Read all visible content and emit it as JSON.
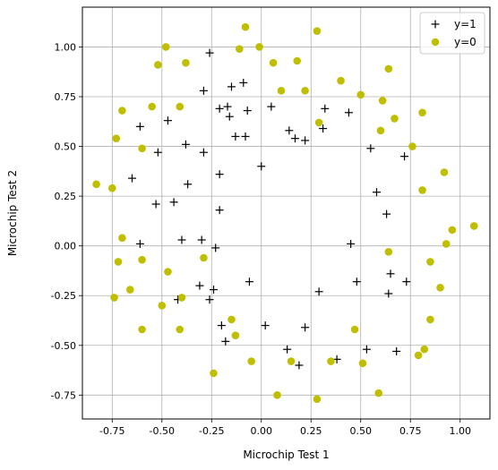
{
  "chart_data": {
    "type": "scatter",
    "xlabel": "Microchip Test 1",
    "ylabel": "Microchip Test 2",
    "xlim": [
      -0.9,
      1.15
    ],
    "ylim": [
      -0.87,
      1.2
    ],
    "xticks": [
      "-0.75",
      "-0.50",
      "-0.25",
      "0.00",
      "0.25",
      "0.50",
      "0.75",
      "1.00"
    ],
    "yticks": [
      "-0.75",
      "-0.50",
      "-0.25",
      "0.00",
      "0.25",
      "0.50",
      "0.75",
      "1.00"
    ],
    "grid": true,
    "legend_position": "top-right",
    "colors": {
      "y1": "#000000",
      "y0": "#bfbf00",
      "grid": "#b0b0b0"
    },
    "series": [
      {
        "name": "y=1",
        "marker": "plus",
        "points": [
          [
            -0.26,
            0.97
          ],
          [
            -0.29,
            0.78
          ],
          [
            -0.15,
            0.8
          ],
          [
            -0.09,
            0.82
          ],
          [
            -0.21,
            0.69
          ],
          [
            -0.17,
            0.7
          ],
          [
            -0.07,
            0.68
          ],
          [
            -0.16,
            0.65
          ],
          [
            -0.13,
            0.55
          ],
          [
            -0.08,
            0.55
          ],
          [
            0.05,
            0.7
          ],
          [
            0.14,
            0.58
          ],
          [
            0.17,
            0.54
          ],
          [
            0.22,
            0.53
          ],
          [
            0.31,
            0.59
          ],
          [
            0.32,
            0.69
          ],
          [
            0.44,
            0.67
          ],
          [
            -0.47,
            0.63
          ],
          [
            -0.61,
            0.6
          ],
          [
            -0.52,
            0.47
          ],
          [
            -0.38,
            0.51
          ],
          [
            -0.29,
            0.47
          ],
          [
            -0.65,
            0.34
          ],
          [
            -0.37,
            0.31
          ],
          [
            -0.21,
            0.36
          ],
          [
            0.0,
            0.4
          ],
          [
            0.55,
            0.49
          ],
          [
            0.72,
            0.45
          ],
          [
            -0.53,
            0.21
          ],
          [
            -0.44,
            0.22
          ],
          [
            -0.21,
            0.18
          ],
          [
            0.58,
            0.27
          ],
          [
            0.63,
            0.16
          ],
          [
            -0.61,
            0.01
          ],
          [
            -0.4,
            0.03
          ],
          [
            -0.3,
            0.03
          ],
          [
            -0.23,
            -0.01
          ],
          [
            0.45,
            0.01
          ],
          [
            0.65,
            -0.14
          ],
          [
            -0.31,
            -0.2
          ],
          [
            -0.24,
            -0.22
          ],
          [
            -0.06,
            -0.18
          ],
          [
            0.29,
            -0.23
          ],
          [
            0.48,
            -0.18
          ],
          [
            0.73,
            -0.18
          ],
          [
            -0.42,
            -0.27
          ],
          [
            -0.26,
            -0.27
          ],
          [
            0.64,
            -0.24
          ],
          [
            -0.2,
            -0.4
          ],
          [
            0.02,
            -0.4
          ],
          [
            0.22,
            -0.41
          ],
          [
            0.13,
            -0.52
          ],
          [
            0.19,
            -0.6
          ],
          [
            0.38,
            -0.57
          ],
          [
            0.53,
            -0.52
          ],
          [
            0.68,
            -0.53
          ],
          [
            -0.18,
            -0.48
          ]
        ]
      },
      {
        "name": "y=0",
        "marker": "circle",
        "points": [
          [
            -0.08,
            1.1
          ],
          [
            0.28,
            1.08
          ],
          [
            -0.48,
            1.0
          ],
          [
            -0.11,
            0.99
          ],
          [
            -0.01,
            1.0
          ],
          [
            -0.52,
            0.91
          ],
          [
            -0.38,
            0.92
          ],
          [
            0.06,
            0.92
          ],
          [
            0.18,
            0.93
          ],
          [
            0.4,
            0.83
          ],
          [
            0.64,
            0.89
          ],
          [
            0.1,
            0.78
          ],
          [
            0.22,
            0.78
          ],
          [
            0.5,
            0.76
          ],
          [
            0.61,
            0.73
          ],
          [
            -0.55,
            0.7
          ],
          [
            -0.41,
            0.7
          ],
          [
            -0.7,
            0.68
          ],
          [
            0.81,
            0.67
          ],
          [
            0.67,
            0.64
          ],
          [
            0.29,
            0.62
          ],
          [
            0.6,
            0.58
          ],
          [
            -0.73,
            0.54
          ],
          [
            -0.6,
            0.49
          ],
          [
            0.76,
            0.5
          ],
          [
            0.92,
            0.37
          ],
          [
            -0.83,
            0.31
          ],
          [
            -0.75,
            0.29
          ],
          [
            0.81,
            0.28
          ],
          [
            0.96,
            0.08
          ],
          [
            1.07,
            0.1
          ],
          [
            0.93,
            0.01
          ],
          [
            -0.7,
            0.04
          ],
          [
            0.64,
            -0.03
          ],
          [
            -0.6,
            -0.07
          ],
          [
            -0.29,
            -0.06
          ],
          [
            -0.72,
            -0.08
          ],
          [
            0.85,
            -0.08
          ],
          [
            -0.47,
            -0.13
          ],
          [
            0.9,
            -0.21
          ],
          [
            -0.66,
            -0.22
          ],
          [
            -0.74,
            -0.26
          ],
          [
            -0.4,
            -0.26
          ],
          [
            -0.5,
            -0.3
          ],
          [
            -0.15,
            -0.37
          ],
          [
            0.85,
            -0.37
          ],
          [
            0.47,
            -0.42
          ],
          [
            -0.6,
            -0.42
          ],
          [
            -0.41,
            -0.42
          ],
          [
            -0.13,
            -0.45
          ],
          [
            0.82,
            -0.52
          ],
          [
            0.79,
            -0.55
          ],
          [
            -0.05,
            -0.58
          ],
          [
            0.15,
            -0.58
          ],
          [
            0.35,
            -0.58
          ],
          [
            0.51,
            -0.59
          ],
          [
            -0.24,
            -0.64
          ],
          [
            0.08,
            -0.75
          ],
          [
            0.28,
            -0.77
          ],
          [
            0.59,
            -0.74
          ]
        ]
      }
    ]
  }
}
